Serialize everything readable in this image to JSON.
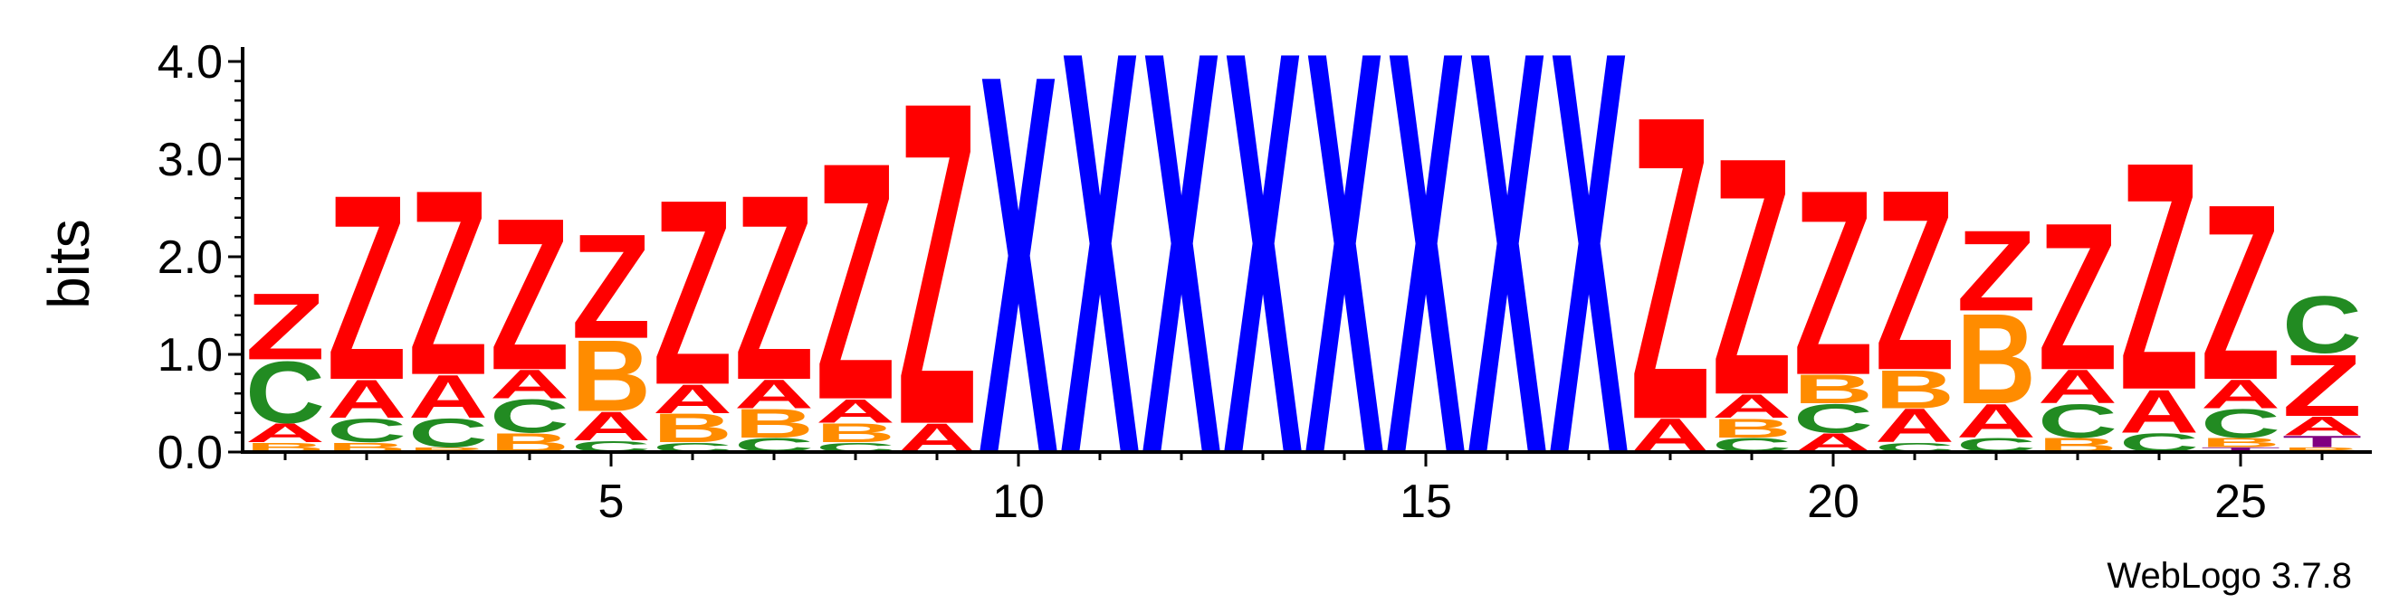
{
  "chart_data": {
    "type": "sequence-logo",
    "ylabel": "bits",
    "ylim": [
      0,
      4.0
    ],
    "yticks": [
      "0.0",
      "1.0",
      "2.0",
      "3.0",
      "4.0"
    ],
    "xticks": [
      5,
      10,
      15,
      20,
      25
    ],
    "positions": 26,
    "colors": {
      "Z": "#ff0000",
      "X": "#0000ff",
      "A": "#ff0000",
      "B": "#ff8c00",
      "C": "#228b22",
      "T": "#800080"
    },
    "columns": [
      {
        "pos": 1,
        "stack": [
          [
            "B",
            0.1
          ],
          [
            "A",
            0.2
          ],
          [
            "C",
            0.65
          ],
          [
            "Z",
            0.7
          ]
        ]
      },
      {
        "pos": 2,
        "stack": [
          [
            "B",
            0.1
          ],
          [
            "C",
            0.25
          ],
          [
            "A",
            0.4
          ],
          [
            "Z",
            1.95
          ]
        ]
      },
      {
        "pos": 3,
        "stack": [
          [
            "B",
            0.05
          ],
          [
            "C",
            0.3
          ],
          [
            "A",
            0.45
          ],
          [
            "Z",
            1.95
          ]
        ]
      },
      {
        "pos": 4,
        "stack": [
          [
            "B",
            0.2
          ],
          [
            "C",
            0.35
          ],
          [
            "A",
            0.3
          ],
          [
            "Z",
            1.6
          ]
        ]
      },
      {
        "pos": 5,
        "stack": [
          [
            "C",
            0.12
          ],
          [
            "A",
            0.3
          ],
          [
            "B",
            0.75
          ],
          [
            "Z",
            1.1
          ]
        ]
      },
      {
        "pos": 6,
        "stack": [
          [
            "C",
            0.1
          ],
          [
            "B",
            0.3
          ],
          [
            "A",
            0.3
          ],
          [
            "Z",
            1.95
          ]
        ]
      },
      {
        "pos": 7,
        "stack": [
          [
            "C",
            0.15
          ],
          [
            "B",
            0.3
          ],
          [
            "A",
            0.3
          ],
          [
            "Z",
            1.95
          ]
        ]
      },
      {
        "pos": 8,
        "stack": [
          [
            "C",
            0.1
          ],
          [
            "B",
            0.2
          ],
          [
            "A",
            0.25
          ],
          [
            "Z",
            2.5
          ]
        ]
      },
      {
        "pos": 9,
        "stack": [
          [
            "A",
            0.3
          ],
          [
            "Z",
            3.4
          ]
        ]
      },
      {
        "pos": 10,
        "stack": [
          [
            "X",
            4.0
          ]
        ]
      },
      {
        "pos": 11,
        "stack": [
          [
            "X",
            4.25
          ]
        ]
      },
      {
        "pos": 12,
        "stack": [
          [
            "X",
            4.25
          ]
        ]
      },
      {
        "pos": 13,
        "stack": [
          [
            "X",
            4.25
          ]
        ]
      },
      {
        "pos": 14,
        "stack": [
          [
            "X",
            4.25
          ]
        ]
      },
      {
        "pos": 15,
        "stack": [
          [
            "X",
            4.25
          ]
        ]
      },
      {
        "pos": 16,
        "stack": [
          [
            "X",
            4.25
          ]
        ]
      },
      {
        "pos": 17,
        "stack": [
          [
            "X",
            4.25
          ]
        ]
      },
      {
        "pos": 18,
        "stack": [
          [
            "A",
            0.35
          ],
          [
            "Z",
            3.2
          ]
        ]
      },
      {
        "pos": 19,
        "stack": [
          [
            "C",
            0.15
          ],
          [
            "B",
            0.2
          ],
          [
            "A",
            0.25
          ],
          [
            "Z",
            2.5
          ]
        ]
      },
      {
        "pos": 20,
        "stack": [
          [
            "A",
            0.2
          ],
          [
            "C",
            0.3
          ],
          [
            "B",
            0.3
          ],
          [
            "Z",
            1.95
          ]
        ]
      },
      {
        "pos": 21,
        "stack": [
          [
            "C",
            0.1
          ],
          [
            "A",
            0.35
          ],
          [
            "B",
            0.4
          ],
          [
            "Z",
            1.9
          ]
        ]
      },
      {
        "pos": 22,
        "stack": [
          [
            "C",
            0.15
          ],
          [
            "A",
            0.35
          ],
          [
            "B",
            0.95
          ],
          [
            "Z",
            0.85
          ]
        ]
      },
      {
        "pos": 23,
        "stack": [
          [
            "B",
            0.15
          ],
          [
            "C",
            0.35
          ],
          [
            "A",
            0.35
          ],
          [
            "Z",
            1.55
          ]
        ]
      },
      {
        "pos": 24,
        "stack": [
          [
            "C",
            0.2
          ],
          [
            "A",
            0.45
          ],
          [
            "Z",
            2.4
          ]
        ]
      },
      {
        "pos": 25,
        "stack": [
          [
            "T",
            0.05
          ],
          [
            "B",
            0.1
          ],
          [
            "C",
            0.3
          ],
          [
            "A",
            0.3
          ],
          [
            "Z",
            1.85
          ]
        ]
      },
      {
        "pos": 26,
        "stack": [
          [
            "B",
            0.05
          ],
          [
            "T",
            0.12
          ],
          [
            "A",
            0.2
          ],
          [
            "Z",
            0.65
          ],
          [
            "C",
            0.6
          ]
        ]
      }
    ]
  },
  "credit": "WebLogo 3.7.8"
}
